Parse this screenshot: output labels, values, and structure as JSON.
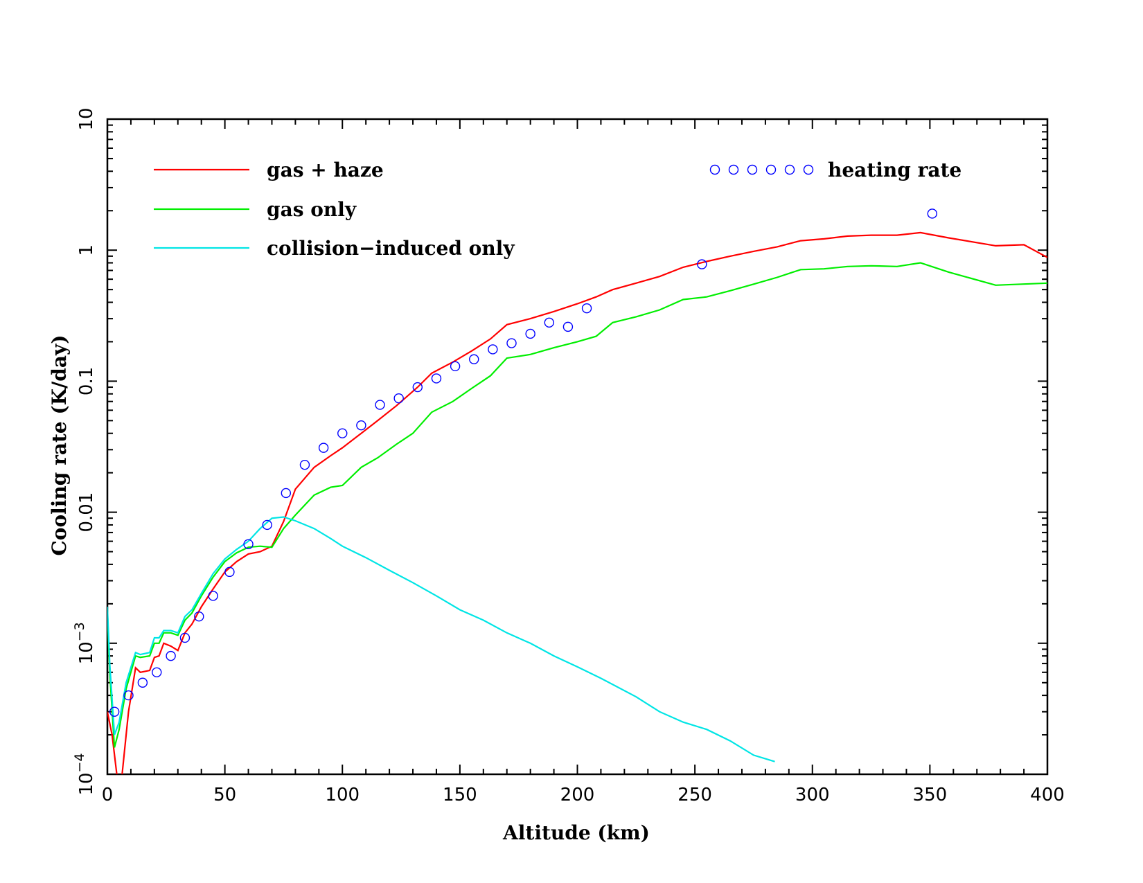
{
  "chart_data": {
    "type": "line",
    "xlabel": "Altitude (km)",
    "ylabel": "Cooling rate (K/day)",
    "xlim": [
      0,
      400
    ],
    "ylim": [
      0.0001,
      10
    ],
    "yscale": "log",
    "grid": false,
    "legend": "top",
    "x_ticks": [
      {
        "value": 0,
        "label": "0"
      },
      {
        "value": 50,
        "label": "50"
      },
      {
        "value": 100,
        "label": "100"
      },
      {
        "value": 150,
        "label": "150"
      },
      {
        "value": 200,
        "label": "200"
      },
      {
        "value": 250,
        "label": "250"
      },
      {
        "value": 300,
        "label": "300"
      },
      {
        "value": 350,
        "label": "350"
      },
      {
        "value": 400,
        "label": "400"
      }
    ],
    "y_ticks": [
      {
        "value": 10,
        "label": "10"
      },
      {
        "value": 1,
        "label": "1"
      },
      {
        "value": 0.1,
        "label": "0.1"
      },
      {
        "value": 0.01,
        "label": "0.01"
      },
      {
        "value": 0.001,
        "label": "10",
        "exp": "−3"
      },
      {
        "value": 0.0001,
        "label": "10",
        "exp": "−4"
      }
    ],
    "series": [
      {
        "name": "gas + haze",
        "kind": "line",
        "color": "#ff0000",
        "x": [
          0,
          2,
          4,
          6,
          9,
          12,
          14,
          18,
          20,
          22,
          24,
          27,
          30,
          33,
          36,
          40,
          45,
          50,
          55,
          60,
          65,
          70,
          75,
          80,
          88,
          95,
          100,
          108,
          115,
          123,
          132,
          138,
          147,
          155,
          163,
          170,
          180,
          190,
          200,
          208,
          215,
          225,
          235,
          245,
          255,
          265,
          275,
          285,
          295,
          305,
          315,
          325,
          336,
          346,
          358,
          378,
          390,
          400
        ],
        "y": [
          0.0003,
          0.0002,
          0.0001,
          9e-05,
          0.0003,
          0.00065,
          0.0006,
          0.00062,
          0.00078,
          0.0008,
          0.001,
          0.00095,
          0.00088,
          0.0012,
          0.0014,
          0.0019,
          0.0026,
          0.0035,
          0.0042,
          0.0048,
          0.005,
          0.0055,
          0.0085,
          0.015,
          0.022,
          0.027,
          0.031,
          0.04,
          0.05,
          0.065,
          0.09,
          0.115,
          0.14,
          0.17,
          0.21,
          0.27,
          0.3,
          0.34,
          0.39,
          0.44,
          0.5,
          0.56,
          0.63,
          0.74,
          0.82,
          0.9,
          0.98,
          1.06,
          1.18,
          1.22,
          1.28,
          1.3,
          1.3,
          1.36,
          1.24,
          1.08,
          1.1,
          0.88
        ]
      },
      {
        "name": "gas only",
        "kind": "line",
        "color": "#00ee00",
        "x": [
          0,
          1,
          3,
          5,
          8,
          12,
          14,
          18,
          20,
          22,
          24,
          27,
          30,
          33,
          36,
          40,
          45,
          50,
          55,
          60,
          65,
          70,
          75,
          80,
          88,
          95,
          100,
          108,
          115,
          123,
          130,
          138,
          147,
          155,
          163,
          170,
          180,
          190,
          200,
          208,
          215,
          225,
          235,
          245,
          255,
          265,
          275,
          285,
          295,
          305,
          315,
          325,
          336,
          346,
          358,
          378,
          400
        ],
        "y": [
          0.0018,
          0.0006,
          0.00016,
          0.00022,
          0.00045,
          0.0008,
          0.00078,
          0.0008,
          0.001,
          0.001,
          0.0012,
          0.0012,
          0.00115,
          0.0015,
          0.0017,
          0.0023,
          0.0032,
          0.0042,
          0.0049,
          0.0054,
          0.0055,
          0.0054,
          0.0075,
          0.0095,
          0.0135,
          0.0155,
          0.016,
          0.022,
          0.026,
          0.033,
          0.04,
          0.058,
          0.07,
          0.088,
          0.11,
          0.15,
          0.16,
          0.18,
          0.2,
          0.22,
          0.28,
          0.31,
          0.35,
          0.42,
          0.44,
          0.49,
          0.55,
          0.62,
          0.71,
          0.72,
          0.75,
          0.76,
          0.75,
          0.8,
          0.68,
          0.54,
          0.56
        ]
      },
      {
        "name": "collision−induced only",
        "kind": "line",
        "color": "#00e5e5",
        "x": [
          0,
          1,
          3,
          5,
          8,
          12,
          14,
          18,
          20,
          22,
          24,
          27,
          30,
          33,
          36,
          40,
          45,
          50,
          55,
          60,
          65,
          70,
          75,
          80,
          88,
          95,
          100,
          110,
          120,
          130,
          140,
          150,
          160,
          170,
          180,
          190,
          200,
          210,
          225,
          235,
          245,
          255,
          265,
          275,
          284
        ],
        "y": [
          0.0019,
          0.0007,
          0.0002,
          0.00025,
          0.0005,
          0.00085,
          0.00082,
          0.00085,
          0.0011,
          0.0011,
          0.00125,
          0.00125,
          0.0012,
          0.0016,
          0.0018,
          0.0024,
          0.0034,
          0.0044,
          0.0052,
          0.006,
          0.0075,
          0.009,
          0.0092,
          0.0086,
          0.0075,
          0.0063,
          0.0055,
          0.0045,
          0.0036,
          0.0029,
          0.0023,
          0.0018,
          0.0015,
          0.0012,
          0.001,
          0.0008,
          0.00066,
          0.00054,
          0.00039,
          0.0003,
          0.00025,
          0.00022,
          0.00018,
          0.00014,
          0.000125
        ]
      },
      {
        "name": "heating rate",
        "kind": "scatter",
        "color": "#0000ff",
        "x": [
          3,
          9,
          15,
          21,
          27,
          33,
          39,
          45,
          52,
          60,
          68,
          76,
          84,
          92,
          100,
          108,
          116,
          124,
          132,
          140,
          148,
          156,
          164,
          172,
          180,
          188,
          196,
          204,
          253,
          351
        ],
        "y": [
          0.0003,
          0.0004,
          0.0005,
          0.0006,
          0.0008,
          0.0011,
          0.0016,
          0.0023,
          0.0035,
          0.0057,
          0.008,
          0.014,
          0.023,
          0.031,
          0.04,
          0.046,
          0.066,
          0.074,
          0.09,
          0.105,
          0.13,
          0.147,
          0.175,
          0.195,
          0.23,
          0.28,
          0.26,
          0.36,
          0.78,
          1.9
        ]
      }
    ]
  }
}
